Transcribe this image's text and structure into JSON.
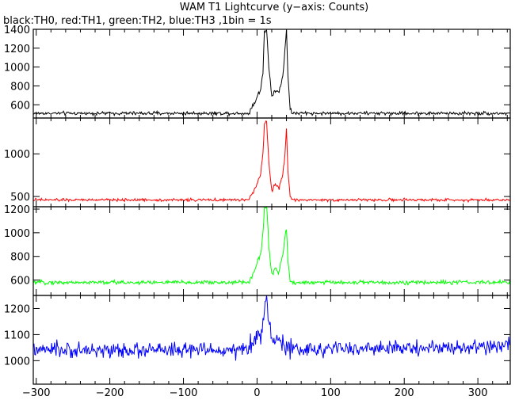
{
  "chart_data": {
    "type": "line",
    "title": "WAM T1 Lightcurve (y−axis: Counts)",
    "subtitle": "black:TH0, red:TH1, green:TH2, blue:TH3 ,1bin = 1s",
    "x_range": [
      -304,
      344
    ],
    "x_ticks": [
      -300,
      -200,
      -100,
      0,
      100,
      200,
      300
    ],
    "x_tick_labels": [
      "−300",
      "−200",
      "−100",
      "0",
      "100",
      "200",
      "300"
    ],
    "panels": [
      {
        "color": "#000000",
        "ylim": [
          460,
          1400
        ],
        "y_ticks": [
          600,
          800,
          1000,
          1200,
          1400
        ],
        "y_tick_labels": [
          "600",
          "800",
          "1000",
          "1200",
          "1400"
        ],
        "baseline": 510,
        "noise": 18,
        "trend": 0,
        "burst": [
          [
            -10,
            540
          ],
          [
            -5,
            600
          ],
          [
            0,
            680
          ],
          [
            5,
            760
          ],
          [
            8,
            950
          ],
          [
            10,
            1380
          ],
          [
            13,
            1400
          ],
          [
            16,
            1000
          ],
          [
            20,
            700
          ],
          [
            25,
            760
          ],
          [
            30,
            730
          ],
          [
            35,
            900
          ],
          [
            38,
            1200
          ],
          [
            40,
            1400
          ],
          [
            42,
            900
          ],
          [
            45,
            560
          ],
          [
            48,
            520
          ]
        ]
      },
      {
        "color": "#ff0000",
        "ylim": [
          380,
          1420
        ],
        "y_ticks": [
          500,
          1000
        ],
        "y_tick_labels": [
          "500",
          "1000"
        ],
        "baseline": 460,
        "noise": 16,
        "trend": 0,
        "burst": [
          [
            -10,
            490
          ],
          [
            -5,
            560
          ],
          [
            0,
            660
          ],
          [
            5,
            760
          ],
          [
            8,
            1000
          ],
          [
            10,
            1350
          ],
          [
            13,
            1380
          ],
          [
            16,
            900
          ],
          [
            20,
            560
          ],
          [
            25,
            640
          ],
          [
            30,
            600
          ],
          [
            35,
            760
          ],
          [
            38,
            1000
          ],
          [
            40,
            1300
          ],
          [
            42,
            800
          ],
          [
            45,
            500
          ],
          [
            48,
            470
          ]
        ]
      },
      {
        "color": "#00ff00",
        "ylim": [
          470,
          1220
        ],
        "y_ticks": [
          600,
          800,
          1000,
          1200
        ],
        "y_tick_labels": [
          "600",
          "800",
          "1000",
          "1200"
        ],
        "baseline": 580,
        "noise": 17,
        "trend": 0,
        "burst": [
          [
            -10,
            600
          ],
          [
            -5,
            660
          ],
          [
            0,
            740
          ],
          [
            5,
            820
          ],
          [
            8,
            1000
          ],
          [
            10,
            1200
          ],
          [
            13,
            1220
          ],
          [
            16,
            900
          ],
          [
            20,
            640
          ],
          [
            25,
            700
          ],
          [
            30,
            660
          ],
          [
            35,
            820
          ],
          [
            38,
            960
          ],
          [
            40,
            1030
          ],
          [
            42,
            760
          ],
          [
            45,
            600
          ],
          [
            48,
            585
          ]
        ]
      },
      {
        "color": "#0000ff",
        "ylim": [
          910,
          1250
        ],
        "y_ticks": [
          1000,
          1100,
          1200
        ],
        "y_tick_labels": [
          "1000",
          "1100",
          "1200"
        ],
        "baseline": 1040,
        "noise": 28,
        "trend": 0.07,
        "burst": [
          [
            -10,
            1050
          ],
          [
            0,
            1090
          ],
          [
            5,
            1110
          ],
          [
            10,
            1200
          ],
          [
            13,
            1250
          ],
          [
            16,
            1160
          ],
          [
            20,
            1080
          ],
          [
            40,
            1060
          ],
          [
            48,
            1040
          ]
        ]
      }
    ]
  }
}
